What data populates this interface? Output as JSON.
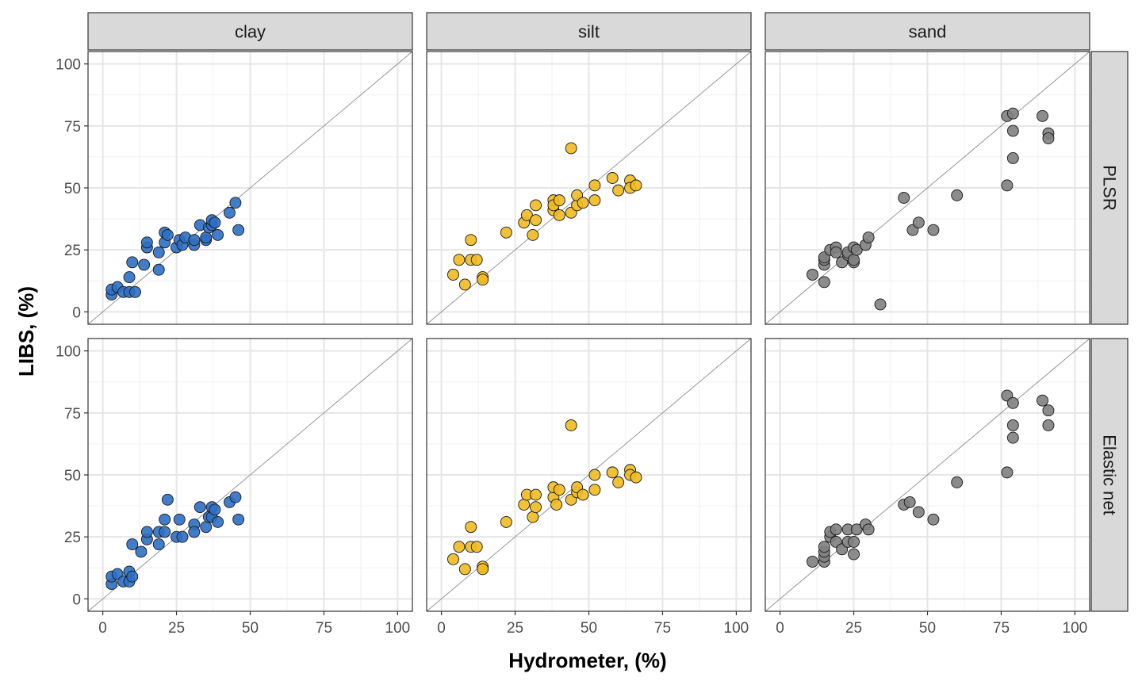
{
  "chart_data": {
    "type": "scatter",
    "xlabel": "Hydrometer, (%)",
    "ylabel": "LIBS, (%)",
    "xlim": [
      -5,
      105
    ],
    "ylim": [
      -5,
      105
    ],
    "x_ticks": [
      0,
      25,
      50,
      75,
      100
    ],
    "y_ticks": [
      0,
      25,
      50,
      75,
      100
    ],
    "grid": true,
    "reference_line": "y = x",
    "columns": [
      "clay",
      "silt",
      "sand"
    ],
    "rows": [
      "PLSR",
      "Elastic net"
    ],
    "colors": {
      "clay": "#2e6fc4",
      "silt": "#f0bb22",
      "sand": "#808080"
    },
    "panels": [
      {
        "row": "PLSR",
        "column": "clay",
        "points": [
          [
            3,
            7
          ],
          [
            3,
            9
          ],
          [
            5,
            10
          ],
          [
            7,
            8
          ],
          [
            9,
            8
          ],
          [
            11,
            8
          ],
          [
            9,
            14
          ],
          [
            10,
            20
          ],
          [
            14,
            19
          ],
          [
            15,
            26
          ],
          [
            15,
            28
          ],
          [
            19,
            24
          ],
          [
            19,
            17
          ],
          [
            21,
            28
          ],
          [
            21,
            32
          ],
          [
            22,
            31
          ],
          [
            25,
            26
          ],
          [
            26,
            29
          ],
          [
            27,
            27
          ],
          [
            28,
            30
          ],
          [
            31,
            27
          ],
          [
            31,
            29
          ],
          [
            33,
            35
          ],
          [
            35,
            29
          ],
          [
            35,
            30
          ],
          [
            36,
            34
          ],
          [
            37,
            35
          ],
          [
            37,
            37
          ],
          [
            38,
            36
          ],
          [
            39,
            31
          ],
          [
            43,
            40
          ],
          [
            45,
            44
          ],
          [
            46,
            33
          ]
        ]
      },
      {
        "row": "PLSR",
        "column": "silt",
        "points": [
          [
            4,
            15
          ],
          [
            6,
            21
          ],
          [
            8,
            11
          ],
          [
            10,
            29
          ],
          [
            10,
            21
          ],
          [
            12,
            21
          ],
          [
            14,
            14
          ],
          [
            14,
            13
          ],
          [
            22,
            32
          ],
          [
            28,
            36
          ],
          [
            29,
            39
          ],
          [
            31,
            31
          ],
          [
            32,
            43
          ],
          [
            32,
            37
          ],
          [
            38,
            41
          ],
          [
            38,
            45
          ],
          [
            38,
            43
          ],
          [
            40,
            39
          ],
          [
            40,
            45
          ],
          [
            44,
            66
          ],
          [
            44,
            40
          ],
          [
            46,
            43
          ],
          [
            46,
            47
          ],
          [
            48,
            44
          ],
          [
            52,
            51
          ],
          [
            52,
            45
          ],
          [
            58,
            54
          ],
          [
            60,
            49
          ],
          [
            64,
            53
          ],
          [
            64,
            50
          ],
          [
            66,
            51
          ]
        ]
      },
      {
        "row": "PLSR",
        "column": "sand",
        "points": [
          [
            11,
            15
          ],
          [
            15,
            12
          ],
          [
            15,
            19
          ],
          [
            15,
            21
          ],
          [
            15,
            22
          ],
          [
            17,
            25
          ],
          [
            19,
            26
          ],
          [
            19,
            24
          ],
          [
            21,
            20
          ],
          [
            23,
            23
          ],
          [
            23,
            24
          ],
          [
            25,
            20
          ],
          [
            25,
            21
          ],
          [
            25,
            26
          ],
          [
            26,
            25
          ],
          [
            29,
            27
          ],
          [
            30,
            30
          ],
          [
            34,
            3
          ],
          [
            42,
            46
          ],
          [
            45,
            33
          ],
          [
            47,
            36
          ],
          [
            52,
            33
          ],
          [
            60,
            47
          ],
          [
            77,
            51
          ],
          [
            77,
            79
          ],
          [
            79,
            80
          ],
          [
            79,
            73
          ],
          [
            79,
            62
          ],
          [
            89,
            79
          ],
          [
            91,
            72
          ],
          [
            91,
            70
          ]
        ]
      },
      {
        "row": "Elastic net",
        "column": "clay",
        "points": [
          [
            3,
            6
          ],
          [
            3,
            9
          ],
          [
            5,
            10
          ],
          [
            7,
            7
          ],
          [
            9,
            7
          ],
          [
            9,
            11
          ],
          [
            10,
            9
          ],
          [
            10,
            22
          ],
          [
            13,
            19
          ],
          [
            15,
            24
          ],
          [
            15,
            27
          ],
          [
            19,
            22
          ],
          [
            19,
            27
          ],
          [
            21,
            27
          ],
          [
            21,
            32
          ],
          [
            22,
            40
          ],
          [
            25,
            25
          ],
          [
            26,
            32
          ],
          [
            27,
            25
          ],
          [
            31,
            30
          ],
          [
            31,
            27
          ],
          [
            33,
            37
          ],
          [
            35,
            29
          ],
          [
            36,
            33
          ],
          [
            37,
            33
          ],
          [
            37,
            37
          ],
          [
            38,
            36
          ],
          [
            39,
            31
          ],
          [
            43,
            39
          ],
          [
            45,
            41
          ],
          [
            46,
            32
          ]
        ]
      },
      {
        "row": "Elastic net",
        "column": "silt",
        "points": [
          [
            4,
            16
          ],
          [
            6,
            21
          ],
          [
            8,
            12
          ],
          [
            10,
            29
          ],
          [
            10,
            21
          ],
          [
            12,
            21
          ],
          [
            14,
            13
          ],
          [
            14,
            12
          ],
          [
            22,
            31
          ],
          [
            28,
            38
          ],
          [
            29,
            42
          ],
          [
            31,
            33
          ],
          [
            32,
            42
          ],
          [
            32,
            37
          ],
          [
            38,
            41
          ],
          [
            38,
            45
          ],
          [
            39,
            38
          ],
          [
            40,
            44
          ],
          [
            44,
            70
          ],
          [
            44,
            40
          ],
          [
            46,
            43
          ],
          [
            46,
            45
          ],
          [
            48,
            42
          ],
          [
            52,
            50
          ],
          [
            52,
            44
          ],
          [
            58,
            51
          ],
          [
            60,
            47
          ],
          [
            64,
            52
          ],
          [
            64,
            50
          ],
          [
            66,
            49
          ]
        ]
      },
      {
        "row": "Elastic net",
        "column": "sand",
        "points": [
          [
            11,
            15
          ],
          [
            15,
            15
          ],
          [
            15,
            17
          ],
          [
            15,
            19
          ],
          [
            15,
            21
          ],
          [
            17,
            25
          ],
          [
            17,
            27
          ],
          [
            19,
            28
          ],
          [
            19,
            23
          ],
          [
            21,
            20
          ],
          [
            23,
            23
          ],
          [
            23,
            28
          ],
          [
            25,
            18
          ],
          [
            25,
            23
          ],
          [
            26,
            28
          ],
          [
            29,
            30
          ],
          [
            30,
            28
          ],
          [
            42,
            38
          ],
          [
            44,
            39
          ],
          [
            47,
            35
          ],
          [
            52,
            32
          ],
          [
            60,
            47
          ],
          [
            77,
            51
          ],
          [
            77,
            82
          ],
          [
            79,
            79
          ],
          [
            79,
            70
          ],
          [
            79,
            65
          ],
          [
            89,
            80
          ],
          [
            91,
            76
          ],
          [
            91,
            70
          ]
        ]
      }
    ]
  }
}
